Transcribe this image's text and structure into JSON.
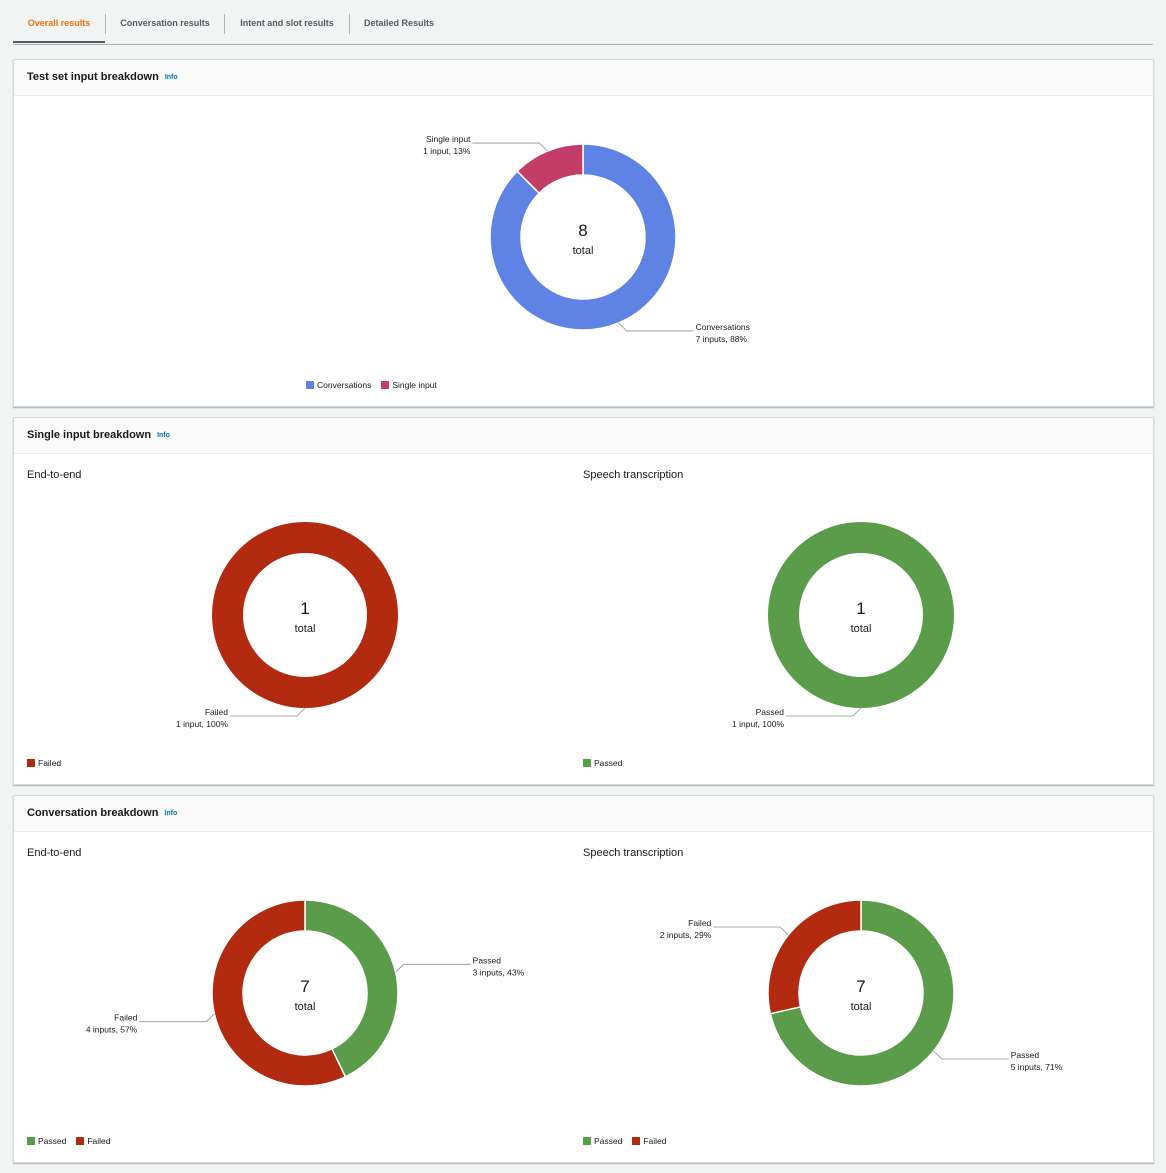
{
  "tabs": [
    {
      "label": "Overall results",
      "active": true
    },
    {
      "label": "Conversation results",
      "active": false
    },
    {
      "label": "Intent and slot results",
      "active": false
    },
    {
      "label": "Detailed Results",
      "active": false
    }
  ],
  "colors": {
    "conversations": "#5e83e5",
    "single_input": "#c33d69",
    "passed": "#5b9c4a",
    "failed": "#b22a10"
  },
  "panels": {
    "test_set": {
      "title": "Test set input breakdown",
      "info": "Info"
    },
    "single_input": {
      "title": "Single input breakdown",
      "info": "Info",
      "left_subtitle": "End-to-end",
      "right_subtitle": "Speech transcription"
    },
    "conversation": {
      "title": "Conversation breakdown",
      "info": "Info",
      "left_subtitle": "End-to-end",
      "right_subtitle": "Speech transcription"
    }
  },
  "chart_data": [
    {
      "id": "test-set",
      "type": "pie",
      "title": "Test set input breakdown",
      "center_value": "8",
      "center_label": "total",
      "slices": [
        {
          "name": "Conversations",
          "value": 7,
          "detail": "7 inputs, 88%",
          "color": "#5e83e5"
        },
        {
          "name": "Single input",
          "value": 1,
          "detail": "1 input, 13%",
          "color": "#c33d69"
        }
      ],
      "legend": [
        "Conversations",
        "Single input"
      ]
    },
    {
      "id": "single-e2e",
      "type": "pie",
      "title": "End-to-end",
      "center_value": "1",
      "center_label": "total",
      "slices": [
        {
          "name": "Failed",
          "value": 1,
          "detail": "1 input, 100%",
          "color": "#b22a10"
        }
      ],
      "legend": [
        "Failed"
      ]
    },
    {
      "id": "single-speech",
      "type": "pie",
      "title": "Speech transcription",
      "center_value": "1",
      "center_label": "total",
      "slices": [
        {
          "name": "Passed",
          "value": 1,
          "detail": "1 input, 100%",
          "color": "#5b9c4a"
        }
      ],
      "legend": [
        "Passed"
      ]
    },
    {
      "id": "conv-e2e",
      "type": "pie",
      "title": "End-to-end",
      "center_value": "7",
      "center_label": "total",
      "slices": [
        {
          "name": "Passed",
          "value": 3,
          "detail": "3 inputs, 43%",
          "color": "#5b9c4a"
        },
        {
          "name": "Failed",
          "value": 4,
          "detail": "4 inputs, 57%",
          "color": "#b22a10"
        }
      ],
      "legend": [
        "Passed",
        "Failed"
      ]
    },
    {
      "id": "conv-speech",
      "type": "pie",
      "title": "Speech transcription",
      "center_value": "7",
      "center_label": "total",
      "slices": [
        {
          "name": "Passed",
          "value": 5,
          "detail": "5 inputs, 71%",
          "color": "#5b9c4a"
        },
        {
          "name": "Failed",
          "value": 2,
          "detail": "2 inputs, 29%",
          "color": "#b22a10"
        }
      ],
      "legend": [
        "Passed",
        "Failed"
      ]
    }
  ]
}
